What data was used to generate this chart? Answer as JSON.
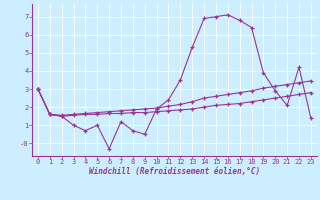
{
  "xlabel": "Windchill (Refroidissement éolien,°C)",
  "background_color": "#cceeff",
  "grid_color": "#ffffff",
  "line_color": "#993399",
  "xlim": [
    -0.5,
    23.5
  ],
  "ylim": [
    -0.7,
    7.7
  ],
  "yticks": [
    0,
    1,
    2,
    3,
    4,
    5,
    6,
    7
  ],
  "ytick_labels": [
    "-0",
    "1",
    "2",
    "3",
    "4",
    "5",
    "6",
    "7"
  ],
  "xticks": [
    0,
    1,
    2,
    3,
    4,
    5,
    6,
    7,
    8,
    9,
    10,
    11,
    12,
    13,
    14,
    15,
    16,
    17,
    18,
    19,
    20,
    21,
    22,
    23
  ],
  "series1_x": [
    0,
    1,
    2,
    3,
    4,
    5,
    6,
    7,
    8,
    9,
    10,
    11,
    12,
    13,
    14,
    15,
    16,
    17,
    18,
    19,
    20,
    21,
    22,
    23
  ],
  "series1_y": [
    3.0,
    1.6,
    1.5,
    1.0,
    0.7,
    1.0,
    -0.3,
    1.2,
    0.7,
    0.5,
    1.9,
    2.4,
    3.5,
    5.3,
    6.9,
    7.0,
    7.1,
    6.8,
    6.4,
    3.9,
    2.9,
    2.1,
    4.2,
    1.4
  ],
  "series2_x": [
    0,
    1,
    2,
    3,
    4,
    5,
    6,
    7,
    8,
    9,
    10,
    11,
    12,
    13,
    14,
    15,
    16,
    17,
    18,
    19,
    20,
    21,
    22,
    23
  ],
  "series2_y": [
    3.0,
    1.6,
    1.55,
    1.6,
    1.65,
    1.7,
    1.75,
    1.8,
    1.85,
    1.9,
    1.95,
    2.05,
    2.15,
    2.3,
    2.5,
    2.6,
    2.7,
    2.8,
    2.9,
    3.05,
    3.15,
    3.25,
    3.35,
    3.45
  ],
  "series3_x": [
    0,
    1,
    2,
    3,
    4,
    5,
    6,
    7,
    8,
    9,
    10,
    11,
    12,
    13,
    14,
    15,
    16,
    17,
    18,
    19,
    20,
    21,
    22,
    23
  ],
  "series3_y": [
    3.0,
    1.6,
    1.5,
    1.55,
    1.6,
    1.6,
    1.65,
    1.65,
    1.7,
    1.7,
    1.75,
    1.8,
    1.85,
    1.9,
    2.0,
    2.1,
    2.15,
    2.2,
    2.3,
    2.4,
    2.5,
    2.6,
    2.7,
    2.8
  ]
}
